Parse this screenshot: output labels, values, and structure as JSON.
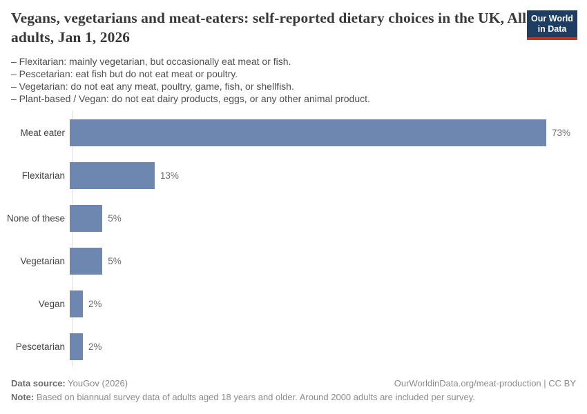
{
  "header": {
    "title": "Vegans, vegetarians and meat-eaters: self-reported dietary choices in the UK, All adults, Jan 1, 2026",
    "definitions": [
      "– Flexitarian: mainly vegetarian, but occasionally eat meat or fish.",
      "– Pescetarian: eat fish but do not eat meat or poultry.",
      "– Vegetarian: do not eat any meat, poultry, game, fish, or shellfish.",
      "– Plant-based / Vegan: do not eat dairy products, eggs, or any other animal product."
    ],
    "logo": {
      "line1": "Our World",
      "line2": "in Data"
    }
  },
  "chart_data": {
    "type": "bar",
    "orientation": "horizontal",
    "categories": [
      "Meat eater",
      "Flexitarian",
      "None of these",
      "Vegetarian",
      "Vegan",
      "Pescetarian"
    ],
    "values": [
      73,
      13,
      5,
      5,
      2,
      2
    ],
    "value_labels": [
      "73%",
      "13%",
      "5%",
      "5%",
      "2%",
      "2%"
    ],
    "unit": "%",
    "xlim": [
      0,
      77
    ],
    "grid": false,
    "legend": "none",
    "bar_color": "#6d87b1"
  },
  "colors": {
    "bar": "#6d87b1",
    "logo_navy": "#1d3d63",
    "logo_red": "#c5302b",
    "axis_line": "#dcdcdc"
  },
  "footer": {
    "source_label": "Data source:",
    "source_value": " YouGov (2026)",
    "link_text": "OurWorldinData.org/meat-production | CC BY",
    "note_label": "Note:",
    "note_value": " Based on biannual survey data of adults aged 18 years and older. Around 2000 adults are included per survey."
  }
}
